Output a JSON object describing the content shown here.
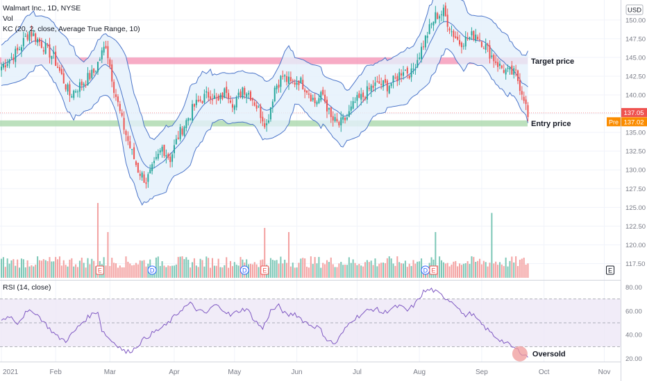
{
  "header": {
    "symbol_line": "Walmart Inc., 1D, NYSE",
    "vol_label": "Vol",
    "kc_label": "KC (20, 2, close, Average True Range, 10)",
    "currency": "USD",
    "rsi_label": "RSI (14, close)"
  },
  "annotations": {
    "target_label": "Target price",
    "entry_label": "Entry price",
    "oversold_label": "Oversold",
    "last_price": "137.05",
    "pre_label": "Pre",
    "pre_price": "137.02"
  },
  "colors": {
    "up": "#26a69a",
    "down": "#ef5350",
    "vol_up": "#7cc7b6",
    "vol_down": "#f3a0a0",
    "band": "#4a74c9",
    "band_fill": "#e3f0fb",
    "target_zone": "#f48fb1",
    "entry_zone": "#a5d6a7",
    "rsi_line": "#7e57c2",
    "rsi_fill": "#ede7f6",
    "earnings_marker": "#ef5350",
    "dividend_marker": "#2962ff",
    "pre_badge": "#fb8c00"
  },
  "chart_data": {
    "type": "candlestick",
    "x_axis_labels": [
      "2021",
      "Feb",
      "Mar",
      "Apr",
      "May",
      "Jun",
      "Jul",
      "Aug",
      "Sep",
      "Oct",
      "Nov"
    ],
    "price_axis": {
      "ticks": [
        "150.00",
        "147.50",
        "145.00",
        "142.50",
        "140.00",
        "137.50",
        "135.00",
        "132.50",
        "130.00",
        "127.50",
        "125.00",
        "122.50",
        "120.00",
        "117.50"
      ],
      "range": [
        117.5,
        151
      ]
    },
    "rsi_axis": {
      "ticks": [
        "80.00",
        "60.00",
        "40.00",
        "20.00"
      ],
      "range": [
        18,
        82
      ],
      "overbought": 70,
      "oversold": 30
    },
    "zones": {
      "target": [
        144.1,
        145.0
      ],
      "entry": [
        135.8,
        136.6
      ]
    },
    "close_path": [
      [
        0,
        143.8
      ],
      [
        8,
        145.8
      ],
      [
        14,
        148.5
      ],
      [
        20,
        146.8
      ],
      [
        26,
        145.0
      ],
      [
        30,
        142.5
      ],
      [
        34,
        140.0
      ],
      [
        40,
        141.5
      ],
      [
        46,
        143.0
      ],
      [
        52,
        146.8
      ],
      [
        56,
        141.0
      ],
      [
        60,
        136.5
      ],
      [
        64,
        133.0
      ],
      [
        68,
        130.0
      ],
      [
        72,
        128.5
      ],
      [
        76,
        130.5
      ],
      [
        80,
        133.0
      ],
      [
        84,
        131.5
      ],
      [
        88,
        134.5
      ],
      [
        92,
        136.5
      ],
      [
        96,
        138.5
      ],
      [
        100,
        139.5
      ],
      [
        104,
        140.2
      ],
      [
        108,
        139.0
      ],
      [
        112,
        140.8
      ],
      [
        116,
        138.5
      ],
      [
        120,
        141.0
      ],
      [
        124,
        140.0
      ],
      [
        128,
        138.0
      ],
      [
        132,
        136.0
      ],
      [
        136,
        141.0
      ],
      [
        140,
        142.5
      ],
      [
        144,
        141.5
      ],
      [
        148,
        142.0
      ],
      [
        152,
        140.8
      ],
      [
        156,
        139.0
      ],
      [
        160,
        140.0
      ],
      [
        164,
        136.8
      ],
      [
        168,
        136.0
      ],
      [
        172,
        137.0
      ],
      [
        176,
        139.0
      ],
      [
        180,
        139.8
      ],
      [
        184,
        141.0
      ],
      [
        188,
        141.5
      ],
      [
        192,
        141.2
      ],
      [
        196,
        142.0
      ],
      [
        200,
        143.5
      ],
      [
        204,
        142.8
      ],
      [
        208,
        145.5
      ],
      [
        212,
        148.2
      ],
      [
        216,
        150.5
      ],
      [
        220,
        151.0
      ],
      [
        224,
        148.5
      ],
      [
        228,
        147.0
      ],
      [
        232,
        147.5
      ],
      [
        236,
        148.2
      ],
      [
        240,
        146.8
      ],
      [
        244,
        145.2
      ],
      [
        248,
        143.8
      ],
      [
        252,
        143.0
      ],
      [
        256,
        142.8
      ],
      [
        258,
        141.2
      ],
      [
        260,
        139.8
      ],
      [
        262,
        137.05
      ]
    ],
    "volume_spikes": [
      {
        "day": 48,
        "value": 0.9,
        "direction": "down"
      },
      {
        "day": 53,
        "value": 0.55,
        "direction": "down"
      },
      {
        "day": 131,
        "value": 0.6,
        "direction": "down"
      },
      {
        "day": 143,
        "value": 0.55,
        "direction": "down"
      },
      {
        "day": 216,
        "value": 0.55,
        "direction": "up"
      },
      {
        "day": 244,
        "value": 0.78,
        "direction": "up"
      }
    ],
    "event_markers": [
      {
        "day": 49,
        "kind": "E"
      },
      {
        "day": 75,
        "kind": "D"
      },
      {
        "day": 121,
        "kind": "D"
      },
      {
        "day": 131,
        "kind": "E"
      },
      {
        "day": 211,
        "kind": "D"
      },
      {
        "day": 215,
        "kind": "E"
      },
      {
        "day": 300,
        "kind": "E"
      }
    ],
    "rsi_path": [
      [
        0,
        52
      ],
      [
        4,
        56
      ],
      [
        8,
        50
      ],
      [
        12,
        58
      ],
      [
        16,
        60
      ],
      [
        20,
        53
      ],
      [
        24,
        45
      ],
      [
        28,
        38
      ],
      [
        32,
        35
      ],
      [
        36,
        42
      ],
      [
        40,
        50
      ],
      [
        44,
        56
      ],
      [
        48,
        60
      ],
      [
        50,
        44
      ],
      [
        54,
        36
      ],
      [
        58,
        31
      ],
      [
        62,
        25
      ],
      [
        66,
        28
      ],
      [
        70,
        35
      ],
      [
        74,
        40
      ],
      [
        78,
        44
      ],
      [
        82,
        48
      ],
      [
        86,
        55
      ],
      [
        90,
        62
      ],
      [
        94,
        66
      ],
      [
        98,
        60
      ],
      [
        102,
        58
      ],
      [
        106,
        65
      ],
      [
        110,
        62
      ],
      [
        114,
        56
      ],
      [
        118,
        60
      ],
      [
        122,
        62
      ],
      [
        126,
        52
      ],
      [
        130,
        45
      ],
      [
        134,
        60
      ],
      [
        138,
        64
      ],
      [
        142,
        56
      ],
      [
        146,
        58
      ],
      [
        150,
        52
      ],
      [
        154,
        48
      ],
      [
        158,
        46
      ],
      [
        162,
        36
      ],
      [
        166,
        32
      ],
      [
        170,
        42
      ],
      [
        174,
        52
      ],
      [
        178,
        56
      ],
      [
        182,
        60
      ],
      [
        186,
        62
      ],
      [
        190,
        58
      ],
      [
        194,
        62
      ],
      [
        198,
        64
      ],
      [
        202,
        60
      ],
      [
        206,
        66
      ],
      [
        210,
        76
      ],
      [
        214,
        78
      ],
      [
        218,
        74
      ],
      [
        222,
        70
      ],
      [
        226,
        66
      ],
      [
        230,
        56
      ],
      [
        234,
        58
      ],
      [
        238,
        50
      ],
      [
        242,
        44
      ],
      [
        246,
        38
      ],
      [
        250,
        34
      ],
      [
        254,
        30
      ],
      [
        258,
        26
      ],
      [
        262,
        21
      ]
    ]
  }
}
